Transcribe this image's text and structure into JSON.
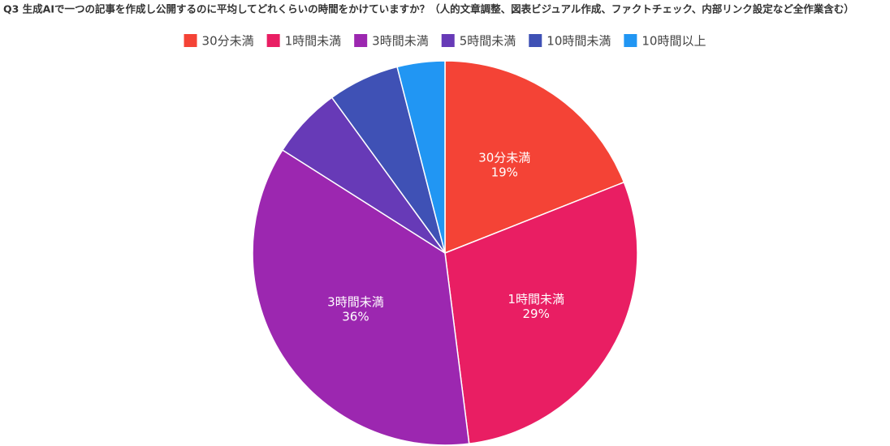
{
  "chart_data": {
    "type": "pie",
    "title": "Q3 生成AIで一つの記事を作成し公開するのに平均してどれくらいの時間をかけていますか？（人的文章調整、図表ビジュアル作成、ファクトチェック、内部リンク設定など全作業含む）",
    "categories": [
      "30分未満",
      "1時間未満",
      "3時間未満",
      "5時間未満",
      "10時間未満",
      "10時間以上"
    ],
    "values": [
      19,
      29,
      36,
      6,
      6,
      4
    ],
    "value_labels": [
      "19%",
      "29%",
      "36%",
      null,
      null,
      null
    ],
    "colors": [
      "#f44336",
      "#e91e63",
      "#9c27b0",
      "#673ab7",
      "#3f51b5",
      "#2196f3"
    ],
    "legend": "top"
  }
}
